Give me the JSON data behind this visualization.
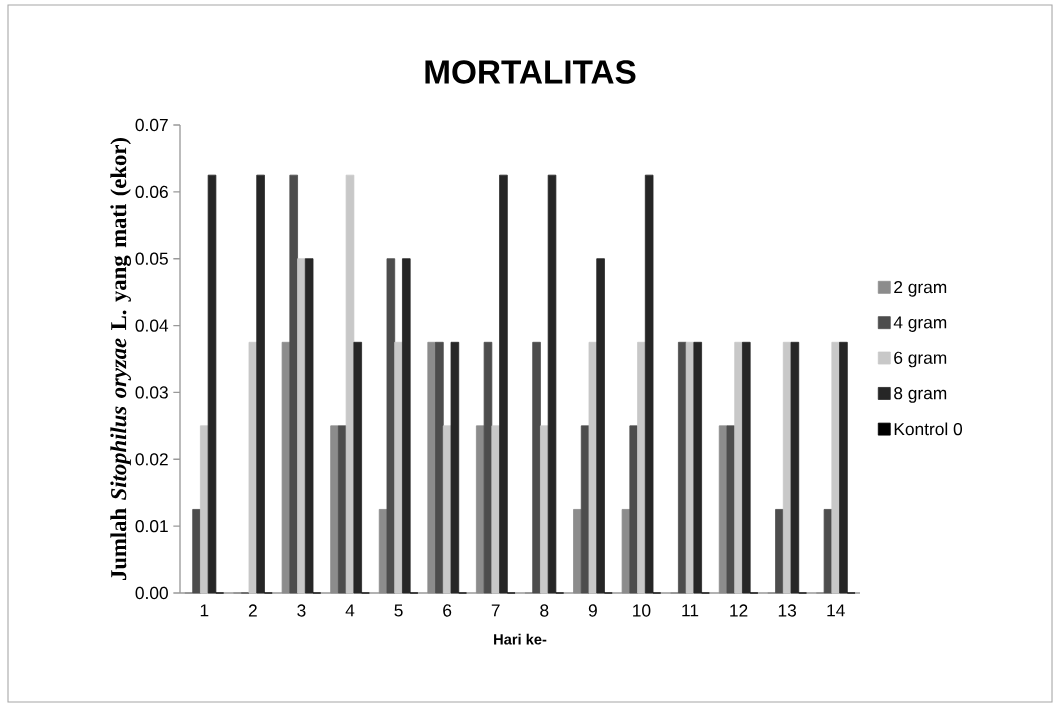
{
  "chart_data": {
    "type": "bar",
    "title": "MORTALITAS",
    "xlabel": "Hari ke-",
    "ylabel": "Jumlah *Sitophilus oryzae* L. yang mati (ekor)",
    "categories": [
      "1",
      "2",
      "3",
      "4",
      "5",
      "6",
      "7",
      "8",
      "9",
      "10",
      "11",
      "12",
      "13",
      "14"
    ],
    "series": [
      {
        "name": "2 gram",
        "color": "#8c8c8c",
        "values": [
          0,
          0,
          0.0375,
          0.025,
          0.0125,
          0.0375,
          0.025,
          0,
          0.0125,
          0.0125,
          0,
          0.025,
          0,
          0
        ]
      },
      {
        "name": "4 gram",
        "color": "#4d4d4d",
        "values": [
          0.0125,
          0,
          0.0625,
          0.025,
          0.05,
          0.0375,
          0.0375,
          0.0375,
          0.025,
          0.025,
          0.0375,
          0.025,
          0.0125,
          0.0125
        ]
      },
      {
        "name": "6 gram",
        "color": "#c8c8c8",
        "values": [
          0.025,
          0.0375,
          0.05,
          0.0625,
          0.0375,
          0.025,
          0.025,
          0.025,
          0.0375,
          0.0375,
          0.0375,
          0.0375,
          0.0375,
          0.0375
        ]
      },
      {
        "name": "8 gram",
        "color": "#262626",
        "values": [
          0.0625,
          0.0625,
          0.05,
          0.0375,
          0.05,
          0.0375,
          0.0625,
          0.0625,
          0.05,
          0.0625,
          0.0375,
          0.0375,
          0.0375,
          0.0375
        ]
      },
      {
        "name": "Kontrol 0",
        "color": "#000000",
        "values": [
          0,
          0,
          0,
          0,
          0,
          0,
          0,
          0,
          0,
          0,
          0,
          0,
          0,
          0
        ]
      }
    ],
    "ylim": [
      0,
      0.07
    ],
    "yticks": [
      {
        "value": 0,
        "label": "0.00"
      },
      0.01,
      0.02,
      0.03,
      0.04,
      0.05,
      0.06,
      0.07
    ],
    "legend": "right"
  }
}
